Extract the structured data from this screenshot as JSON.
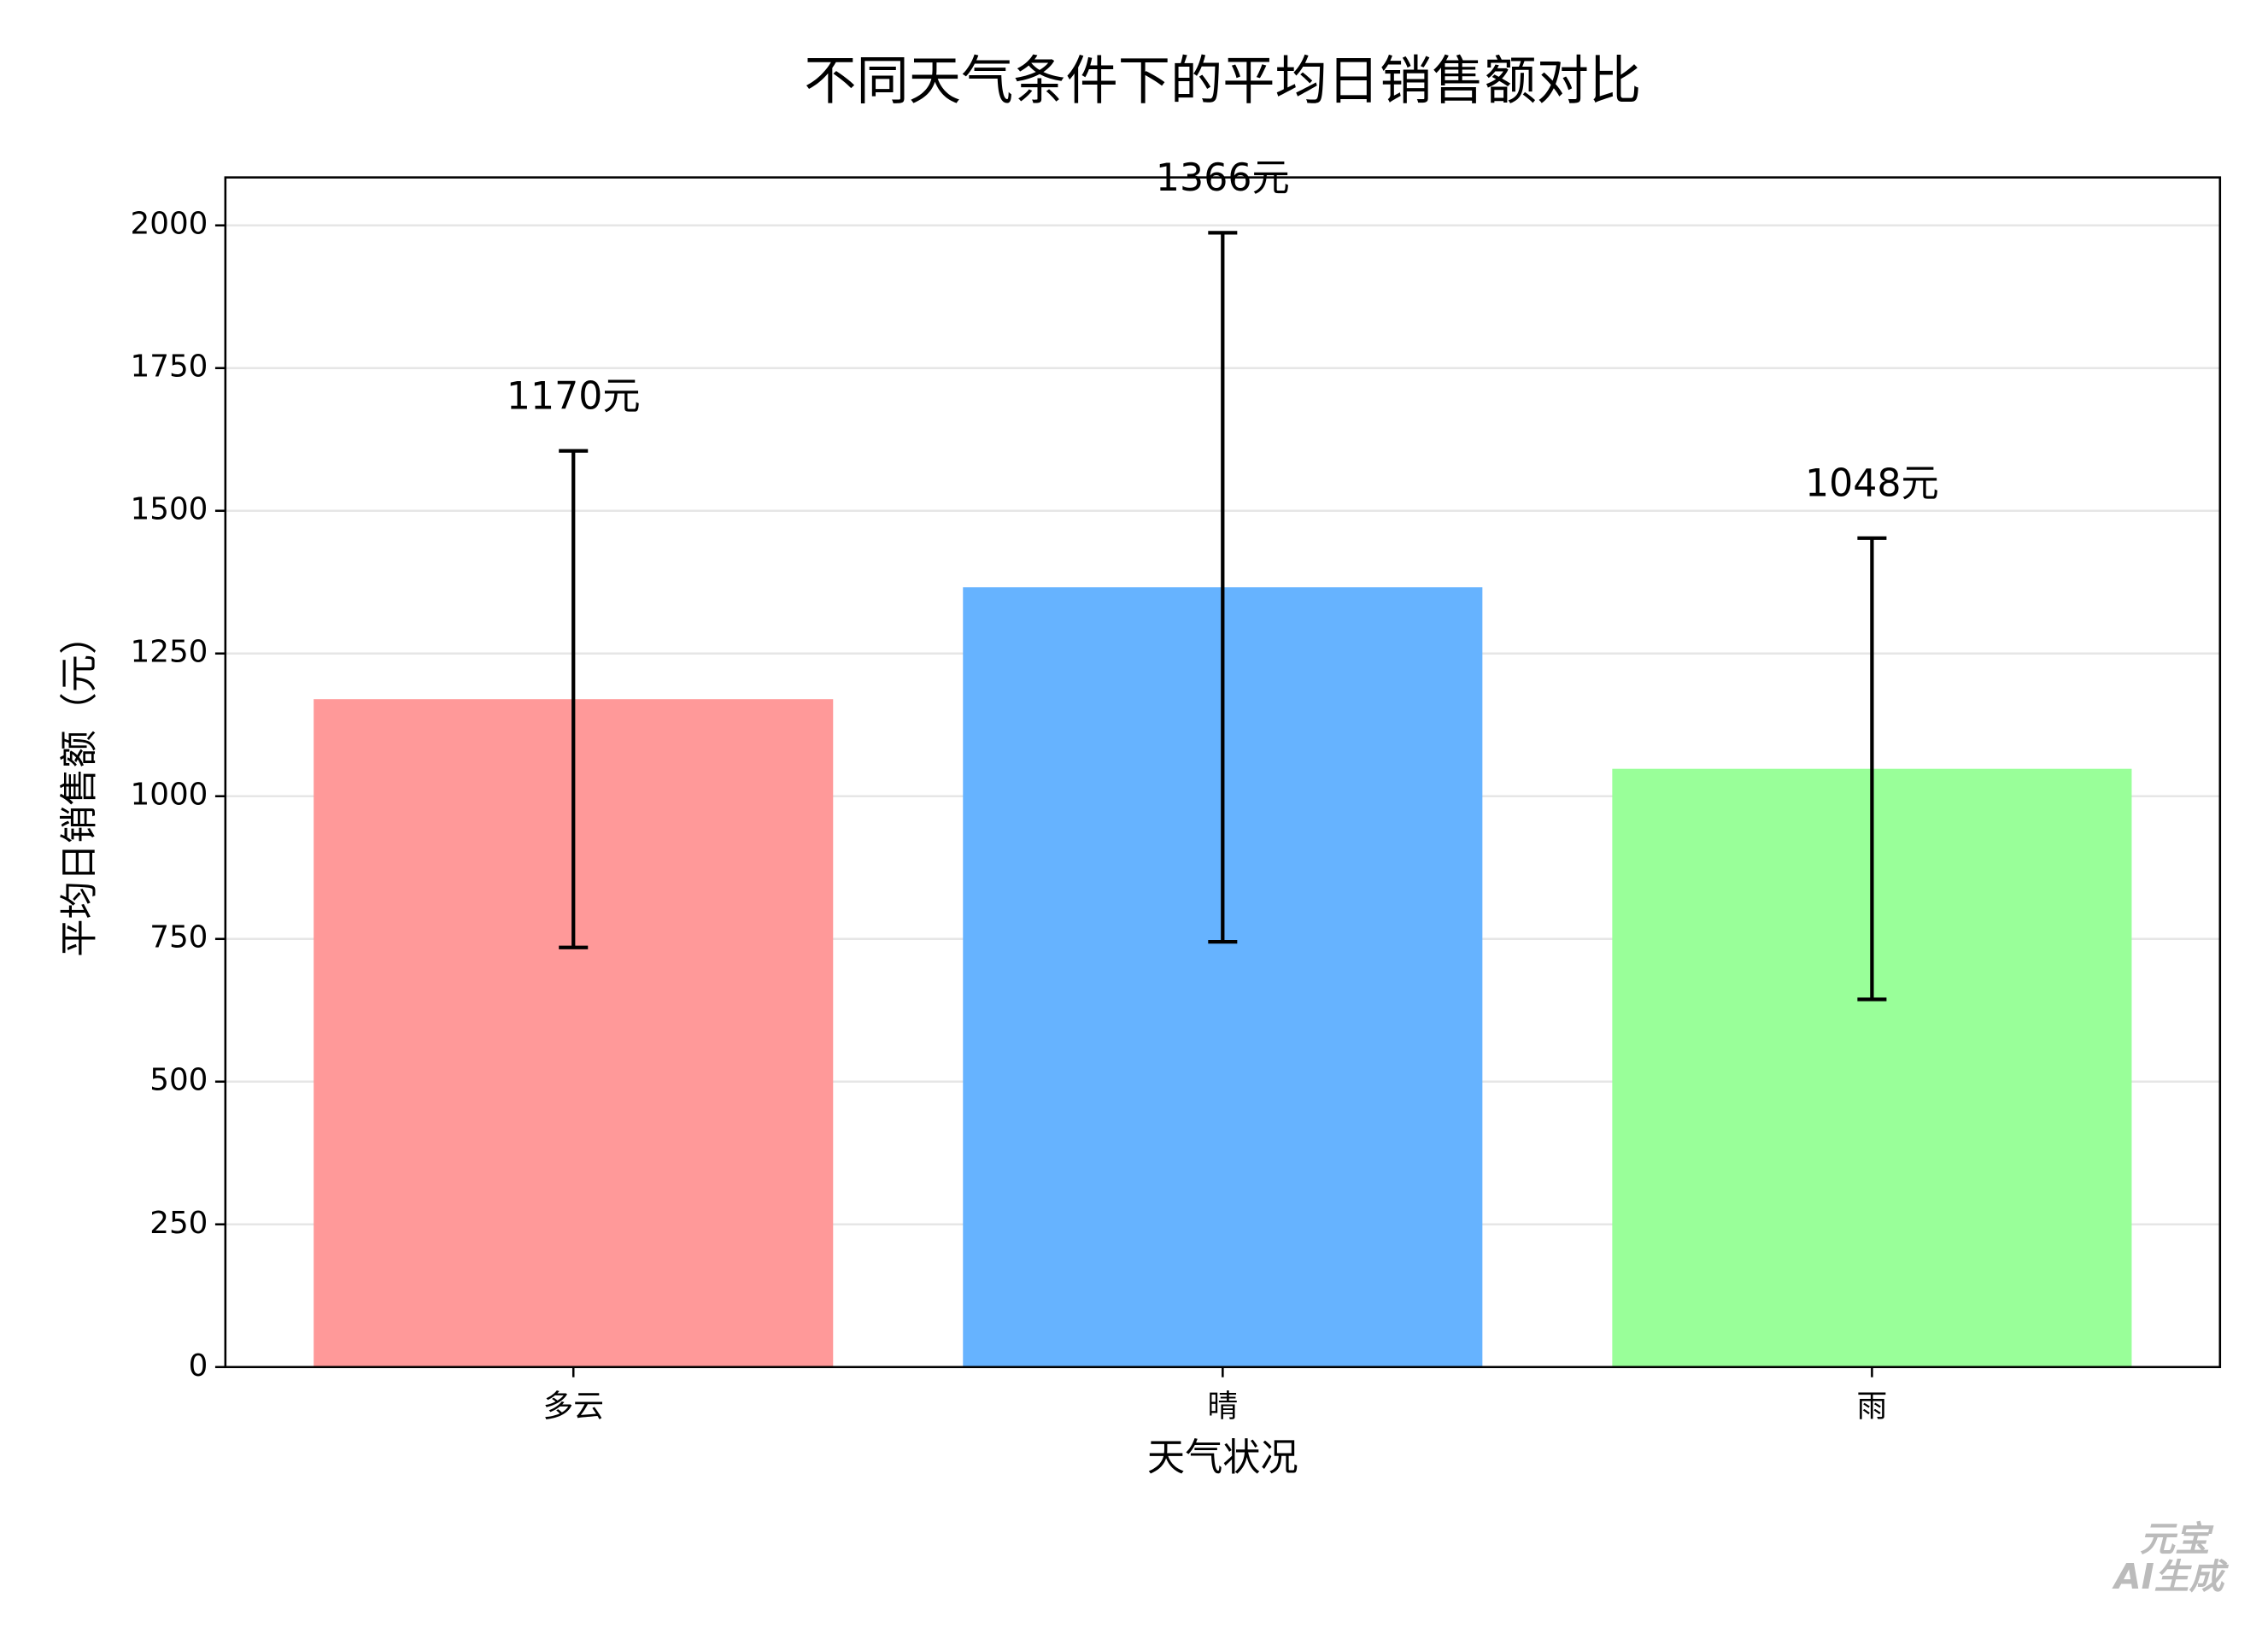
{
  "chart_data": {
    "type": "bar",
    "title": "不同天气条件下的平均日销售额对比",
    "x_label": "天气状况",
    "y_label": "平均日销售额（元）",
    "categories": [
      "多云",
      "晴",
      "雨"
    ],
    "values": [
      1170,
      1366,
      1048
    ],
    "value_labels": [
      "1170元",
      "1366元",
      "1048元"
    ],
    "errors": [
      435,
      621,
      404
    ],
    "colors": [
      "#ff9999",
      "#66b3ff",
      "#99ff99"
    ],
    "ylim": [
      0,
      2084
    ],
    "yticks": [
      0,
      250,
      500,
      750,
      1000,
      1250,
      1500,
      1750,
      2000
    ],
    "grid": true,
    "watermark": [
      "元宝",
      "AI生成"
    ]
  }
}
